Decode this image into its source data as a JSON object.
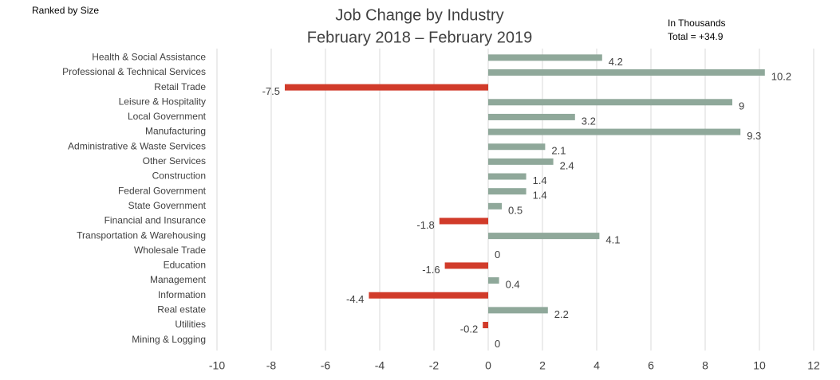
{
  "chart_data": {
    "type": "hbar",
    "title": "Job Change by Industry",
    "subtitle": "February 2018 – February 2019",
    "annotations": [
      "Ranked by Size",
      "In Thousands",
      "Total = +34.9"
    ],
    "categories": [
      "Health & Social Assistance",
      "Professional & Technical Services",
      "Retail Trade",
      "Leisure & Hospitality",
      "Local Government",
      "Manufacturing",
      "Administrative & Waste Services",
      "Other Services",
      "Construction",
      "Federal Government",
      "State Government",
      "Financial and Insurance",
      "Transportation & Warehousing",
      "Wholesale Trade",
      "Education",
      "Management",
      "Information",
      "Real estate",
      "Utilities",
      "Mining & Logging"
    ],
    "values": [
      4.2,
      10.2,
      -7.5,
      9,
      3.2,
      9.3,
      2.1,
      2.4,
      1.4,
      1.4,
      0.5,
      -1.8,
      4.1,
      0,
      -1.6,
      0.4,
      -4.4,
      2.2,
      -0.2,
      0
    ],
    "positive_color": "#8fa89a",
    "negative_color": "#d13b2a",
    "xlim": [
      -10,
      12
    ],
    "xticks": [
      -10,
      -8,
      -6,
      -4,
      -2,
      0,
      2,
      4,
      6,
      8,
      10,
      12
    ],
    "grid": true
  }
}
